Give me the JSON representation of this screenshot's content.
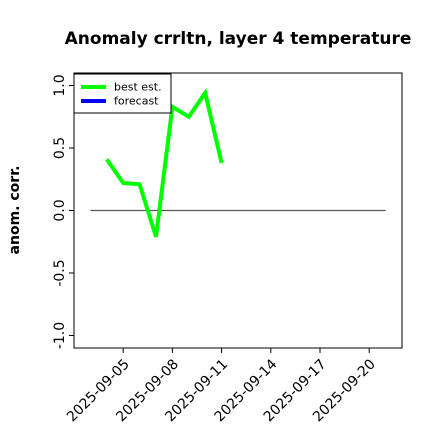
{
  "chart_data": {
    "type": "line",
    "title": "Anomaly crrltn, layer 4 temperature",
    "xlabel": "",
    "ylabel": "anom. corr.",
    "ylim": [
      -1.1,
      1.1
    ],
    "yticks": [
      -1.0,
      -0.5,
      0.0,
      0.5,
      1.0
    ],
    "ytick_labels": [
      "-1.0",
      "-0.5",
      "0.0",
      "0.5",
      "1.0"
    ],
    "xlim": [
      "2025-09-02",
      "2025-09-22"
    ],
    "xticks": [
      "2025-09-05",
      "2025-09-08",
      "2025-09-11",
      "2025-09-14",
      "2025-09-17",
      "2025-09-20"
    ],
    "highlight_tick": "2025-09-11",
    "highlight_color": "#228B22",
    "reference_line": 0.0,
    "legend": {
      "placement": "top-left",
      "entries": [
        "best est.",
        "forecast"
      ]
    },
    "series": [
      {
        "name": "best est.",
        "color": "#00ff00",
        "x": [
          "2025-09-04",
          "2025-09-05",
          "2025-09-06",
          "2025-09-07",
          "2025-09-08",
          "2025-09-09",
          "2025-09-10",
          "2025-09-11"
        ],
        "y": [
          0.41,
          0.22,
          0.21,
          -0.21,
          0.83,
          0.75,
          0.94,
          0.38
        ]
      },
      {
        "name": "forecast",
        "color": "#0000ff",
        "x": [],
        "y": []
      }
    ]
  }
}
